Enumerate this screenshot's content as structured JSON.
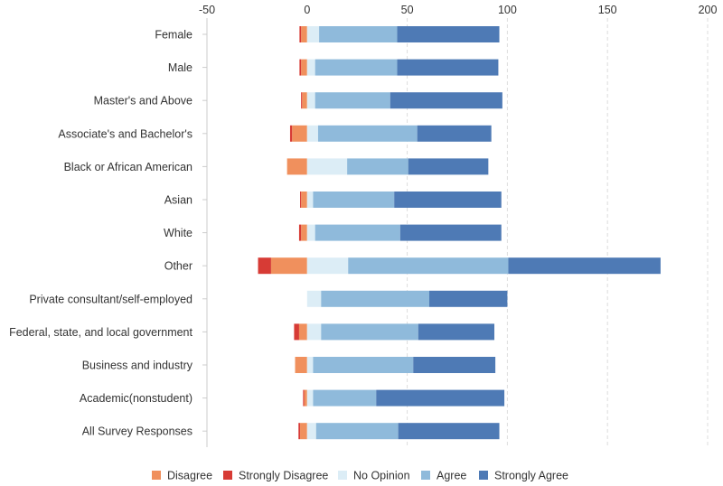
{
  "chart_data": {
    "type": "bar",
    "orientation": "horizontal",
    "stacked": true,
    "title": "",
    "xlabel": "",
    "ylabel": "",
    "xlim": [
      -50,
      200
    ],
    "xticks": [
      -50,
      0,
      50,
      100,
      150,
      200
    ],
    "grid": true,
    "legend_position": "bottom",
    "categories": [
      "Female",
      "Male",
      "Master's and Above",
      "Associate's and Bachelor's",
      "Black or African American",
      "Asian",
      "White",
      "Other",
      "Private consultant/self-employed",
      "Federal, state, and local government",
      "Business and industry",
      "Academic(nonstudent)",
      "All Survey Responses"
    ],
    "negative_series": [
      {
        "name": "Disagree",
        "color": "#f0905d",
        "values": [
          3,
          3,
          2.5,
          7.5,
          10,
          3,
          3,
          18,
          0,
          4,
          6,
          1.5,
          3.5
        ]
      },
      {
        "name": "Strongly Disagree",
        "color": "#d73b35",
        "values": [
          0.8,
          0.8,
          0.5,
          1,
          0,
          0.5,
          1,
          6.5,
          0,
          2.5,
          0,
          0.5,
          0.8
        ]
      }
    ],
    "positive_series": [
      {
        "name": "No Opinion",
        "color": "#dcedf6",
        "values": [
          6,
          4,
          4,
          5.5,
          20,
          3,
          4,
          20.5,
          7,
          7,
          3,
          3,
          4.5
        ]
      },
      {
        "name": "Agree",
        "color": "#8fbadb",
        "values": [
          39,
          41,
          37.5,
          49.5,
          30.5,
          40.5,
          42.5,
          80,
          54,
          48.5,
          50,
          31.5,
          41
        ]
      },
      {
        "name": "Strongly Agree",
        "color": "#4e7ab5",
        "values": [
          51,
          50.5,
          56,
          37,
          40,
          53.5,
          50.5,
          76,
          39,
          38,
          41,
          64,
          50.5
        ]
      }
    ],
    "legend_order": [
      "Disagree",
      "Strongly Disagree",
      "No Opinion",
      "Agree",
      "Strongly Agree"
    ]
  }
}
